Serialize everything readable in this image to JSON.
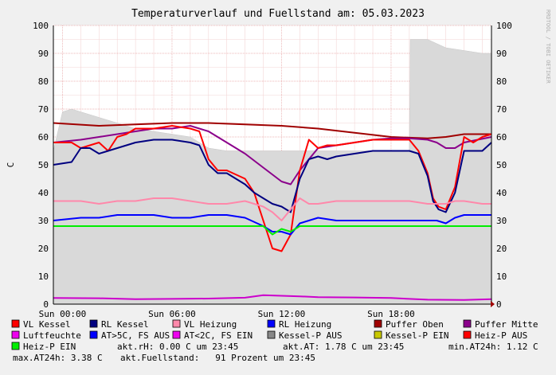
{
  "chart_data": {
    "type": "line",
    "title": "Temperaturverlauf und Fuellstand am: 05.03.2023",
    "ylabel": "C",
    "ylim": [
      0,
      100
    ],
    "yticks": [
      0,
      10,
      20,
      30,
      40,
      50,
      60,
      70,
      80,
      90,
      100
    ],
    "xlim": [
      -0.5,
      23.5
    ],
    "xticks": [
      {
        "x": 0,
        "label": "Sun 00:00"
      },
      {
        "x": 6,
        "label": "Sun 06:00"
      },
      {
        "x": 12,
        "label": "Sun 12:00"
      },
      {
        "x": 18,
        "label": "Sun 18:00"
      }
    ],
    "grid": true,
    "watermark": "RRDTOOL / TOBI OETIKER",
    "fill_series": {
      "name": "Fuellstand",
      "color": "#d9d9d9",
      "x": [
        -0.5,
        0,
        0.5,
        1,
        2,
        3,
        4,
        5,
        6,
        7,
        8,
        9,
        10,
        11,
        12,
        13,
        14,
        15,
        16,
        17,
        18,
        19,
        19.05,
        20,
        21,
        22,
        23,
        23.5
      ],
      "values": [
        55,
        69,
        70,
        69,
        67,
        65,
        63,
        62,
        61,
        60,
        56,
        55,
        55,
        55,
        55,
        55,
        55,
        55,
        55,
        55,
        55,
        55,
        95,
        95,
        92,
        91,
        90,
        90
      ]
    },
    "series": [
      {
        "name": "Puffer Oben",
        "color": "#a00000",
        "x": [
          -0.5,
          2,
          4,
          6,
          8,
          10,
          12,
          14,
          16,
          18,
          20,
          21,
          22,
          23.5
        ],
        "values": [
          65,
          64,
          64.5,
          65,
          65,
          64.5,
          64,
          63,
          61.5,
          60,
          59.5,
          60,
          61,
          61
        ]
      },
      {
        "name": "Puffer Mitte",
        "color": "#8b008b",
        "x": [
          -0.5,
          1,
          2,
          3,
          4,
          5,
          6,
          7,
          8,
          9,
          10,
          11,
          12,
          12.5,
          13,
          14,
          15,
          16,
          17,
          18,
          19,
          20,
          20.5,
          21,
          21.5,
          22,
          23.5
        ],
        "values": [
          58,
          59,
          60,
          61,
          62,
          63,
          63,
          64,
          62,
          58,
          54,
          49,
          44,
          43,
          48,
          56,
          57,
          58,
          59,
          59.5,
          59.5,
          59,
          58,
          56,
          56,
          58,
          60
        ]
      },
      {
        "name": "VL Kessel",
        "color": "#ff0000",
        "x": [
          -0.5,
          0.5,
          1,
          1.5,
          2,
          2.5,
          3,
          3.5,
          4,
          5,
          6,
          7,
          7.5,
          8,
          8.5,
          9,
          10,
          10.5,
          11,
          11.5,
          12,
          12.5,
          13,
          13.5,
          14,
          14.5,
          15,
          16,
          17,
          18,
          19,
          19.5,
          20,
          20.3,
          20.6,
          21,
          21.5,
          22,
          22.5,
          23,
          23.5
        ],
        "values": [
          58,
          58,
          56,
          57,
          58,
          55,
          60,
          61,
          63,
          63,
          64,
          63,
          62,
          52,
          48,
          48,
          45,
          40,
          30,
          20,
          19,
          25,
          48,
          59,
          56,
          57,
          57,
          58,
          59,
          59,
          59,
          55,
          47,
          38,
          35,
          34,
          42,
          60,
          58,
          60,
          61
        ]
      },
      {
        "name": "RL Kessel",
        "color": "#000080",
        "x": [
          -0.5,
          0.5,
          1,
          1.5,
          2,
          2.5,
          3,
          3.5,
          4,
          5,
          6,
          7,
          7.5,
          8,
          8.5,
          9,
          10,
          10.5,
          11,
          11.5,
          12,
          12.5,
          13,
          13.5,
          14,
          14.5,
          15,
          16,
          17,
          18,
          19,
          19.5,
          20,
          20.3,
          20.6,
          21,
          21.5,
          22,
          22.5,
          23,
          23.5
        ],
        "values": [
          50,
          51,
          56,
          56,
          54,
          55,
          56,
          57,
          58,
          59,
          59,
          58,
          57,
          50,
          47,
          47,
          43,
          40,
          38,
          36,
          35,
          33,
          45,
          52,
          53,
          52,
          53,
          54,
          55,
          55,
          55,
          54,
          46,
          37,
          34,
          33,
          40,
          55,
          55,
          55,
          58
        ]
      },
      {
        "name": "VL Heizung",
        "color": "#ff88aa",
        "x": [
          -0.5,
          1,
          2,
          3,
          4,
          5,
          6,
          7,
          8,
          9,
          10,
          11,
          11.5,
          12,
          12.5,
          13,
          13.5,
          14,
          15,
          16,
          17,
          18,
          19,
          20,
          20.5,
          21,
          21.5,
          22,
          23,
          23.5
        ],
        "values": [
          37,
          37,
          36,
          37,
          37,
          38,
          38,
          37,
          36,
          36,
          37,
          35,
          33,
          30,
          34,
          38,
          36,
          36,
          37,
          37,
          37,
          37,
          37,
          36,
          36,
          36,
          37,
          37,
          36,
          36
        ]
      },
      {
        "name": "RL Heizung",
        "color": "#0000ff",
        "x": [
          -0.5,
          1,
          2,
          3,
          4,
          5,
          6,
          7,
          8,
          9,
          10,
          11,
          11.5,
          12,
          12.5,
          13,
          13.5,
          14,
          15,
          16,
          17,
          18,
          19,
          20,
          20.5,
          21,
          21.5,
          22,
          23,
          23.5
        ],
        "values": [
          30,
          31,
          31,
          32,
          32,
          32,
          31,
          31,
          32,
          32,
          31,
          28,
          26,
          26,
          25,
          29,
          30,
          31,
          30,
          30,
          30,
          30,
          30,
          30,
          30,
          29,
          31,
          32,
          32,
          32
        ]
      },
      {
        "name": "Heiz-P EIN",
        "color": "#00ee00",
        "x": [
          -0.5,
          2,
          4,
          6,
          8,
          10,
          11,
          11.5,
          12,
          12.5,
          13,
          14,
          16,
          18,
          20,
          22,
          23.5
        ],
        "values": [
          28,
          28,
          28,
          28,
          28,
          28,
          28,
          25,
          27,
          26,
          28,
          28,
          28,
          28,
          28,
          28,
          28
        ]
      },
      {
        "name": "Luftfeuchte",
        "color": "#cc00cc",
        "x": [
          -0.5,
          2,
          4,
          6,
          8,
          10,
          11,
          12,
          13,
          14,
          16,
          18,
          20,
          22,
          23.5
        ],
        "values": [
          2.2,
          2.1,
          1.8,
          1.9,
          2.0,
          2.3,
          3.2,
          3.0,
          2.8,
          2.5,
          2.4,
          2.2,
          1.6,
          1.5,
          1.8
        ]
      }
    ],
    "legend": [
      {
        "label": "VL Kessel",
        "color": "#ff0000"
      },
      {
        "label": "RL Kessel",
        "color": "#000080"
      },
      {
        "label": "VL Heizung",
        "color": "#ff88aa"
      },
      {
        "label": "RL Heizung",
        "color": "#0000ff"
      },
      {
        "label": "Puffer Oben",
        "color": "#a00000"
      },
      {
        "label": "Puffer Mitte",
        "color": "#8b008b"
      },
      {
        "label": "Luftfeuchte",
        "color": "#ee00ee"
      },
      {
        "label": "AT>5C, FS AUS",
        "color": "#0000ff"
      },
      {
        "label": "AT<2C, FS EIN",
        "color": "#ee00ee"
      },
      {
        "label": "Kessel-P AUS",
        "color": "#888888"
      },
      {
        "label": "Kessel-P EIN",
        "color": "#c8c800"
      },
      {
        "label": "Heiz-P AUS",
        "color": "#ff0000"
      },
      {
        "label": "Heiz-P EIN",
        "color": "#00ee00"
      }
    ],
    "status": [
      "akt.rH: 0.00 C um 23:45",
      "akt.AT: 1.78 C um 23:45",
      "min.AT24h: 1.12 C",
      "max.AT24h: 3.38 C",
      "akt.Fuellstand:   91 Prozent um 23:45"
    ]
  }
}
